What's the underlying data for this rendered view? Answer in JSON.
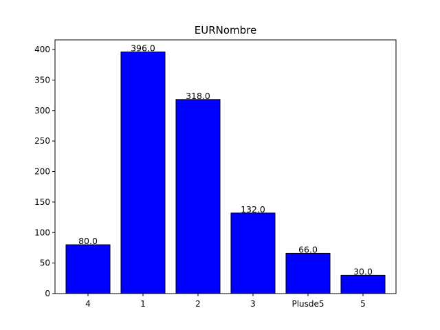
{
  "chart_data": {
    "type": "bar",
    "title": "EURNombre",
    "xlabel": "",
    "ylabel": "",
    "categories": [
      "4",
      "1",
      "2",
      "3",
      "Plusde5",
      "5"
    ],
    "values": [
      80.0,
      396.0,
      318.0,
      132.0,
      66.0,
      30.0
    ],
    "data_labels": [
      "80.0",
      "396.0",
      "318.0",
      "132.0",
      "66.0",
      "30.0"
    ],
    "ylim": [
      0,
      415.8
    ],
    "yticks": [
      0,
      50,
      100,
      150,
      200,
      250,
      300,
      350,
      400
    ],
    "bar_color": "#0000ff",
    "edge_color": "#000000",
    "grid": false,
    "legend": "none"
  }
}
